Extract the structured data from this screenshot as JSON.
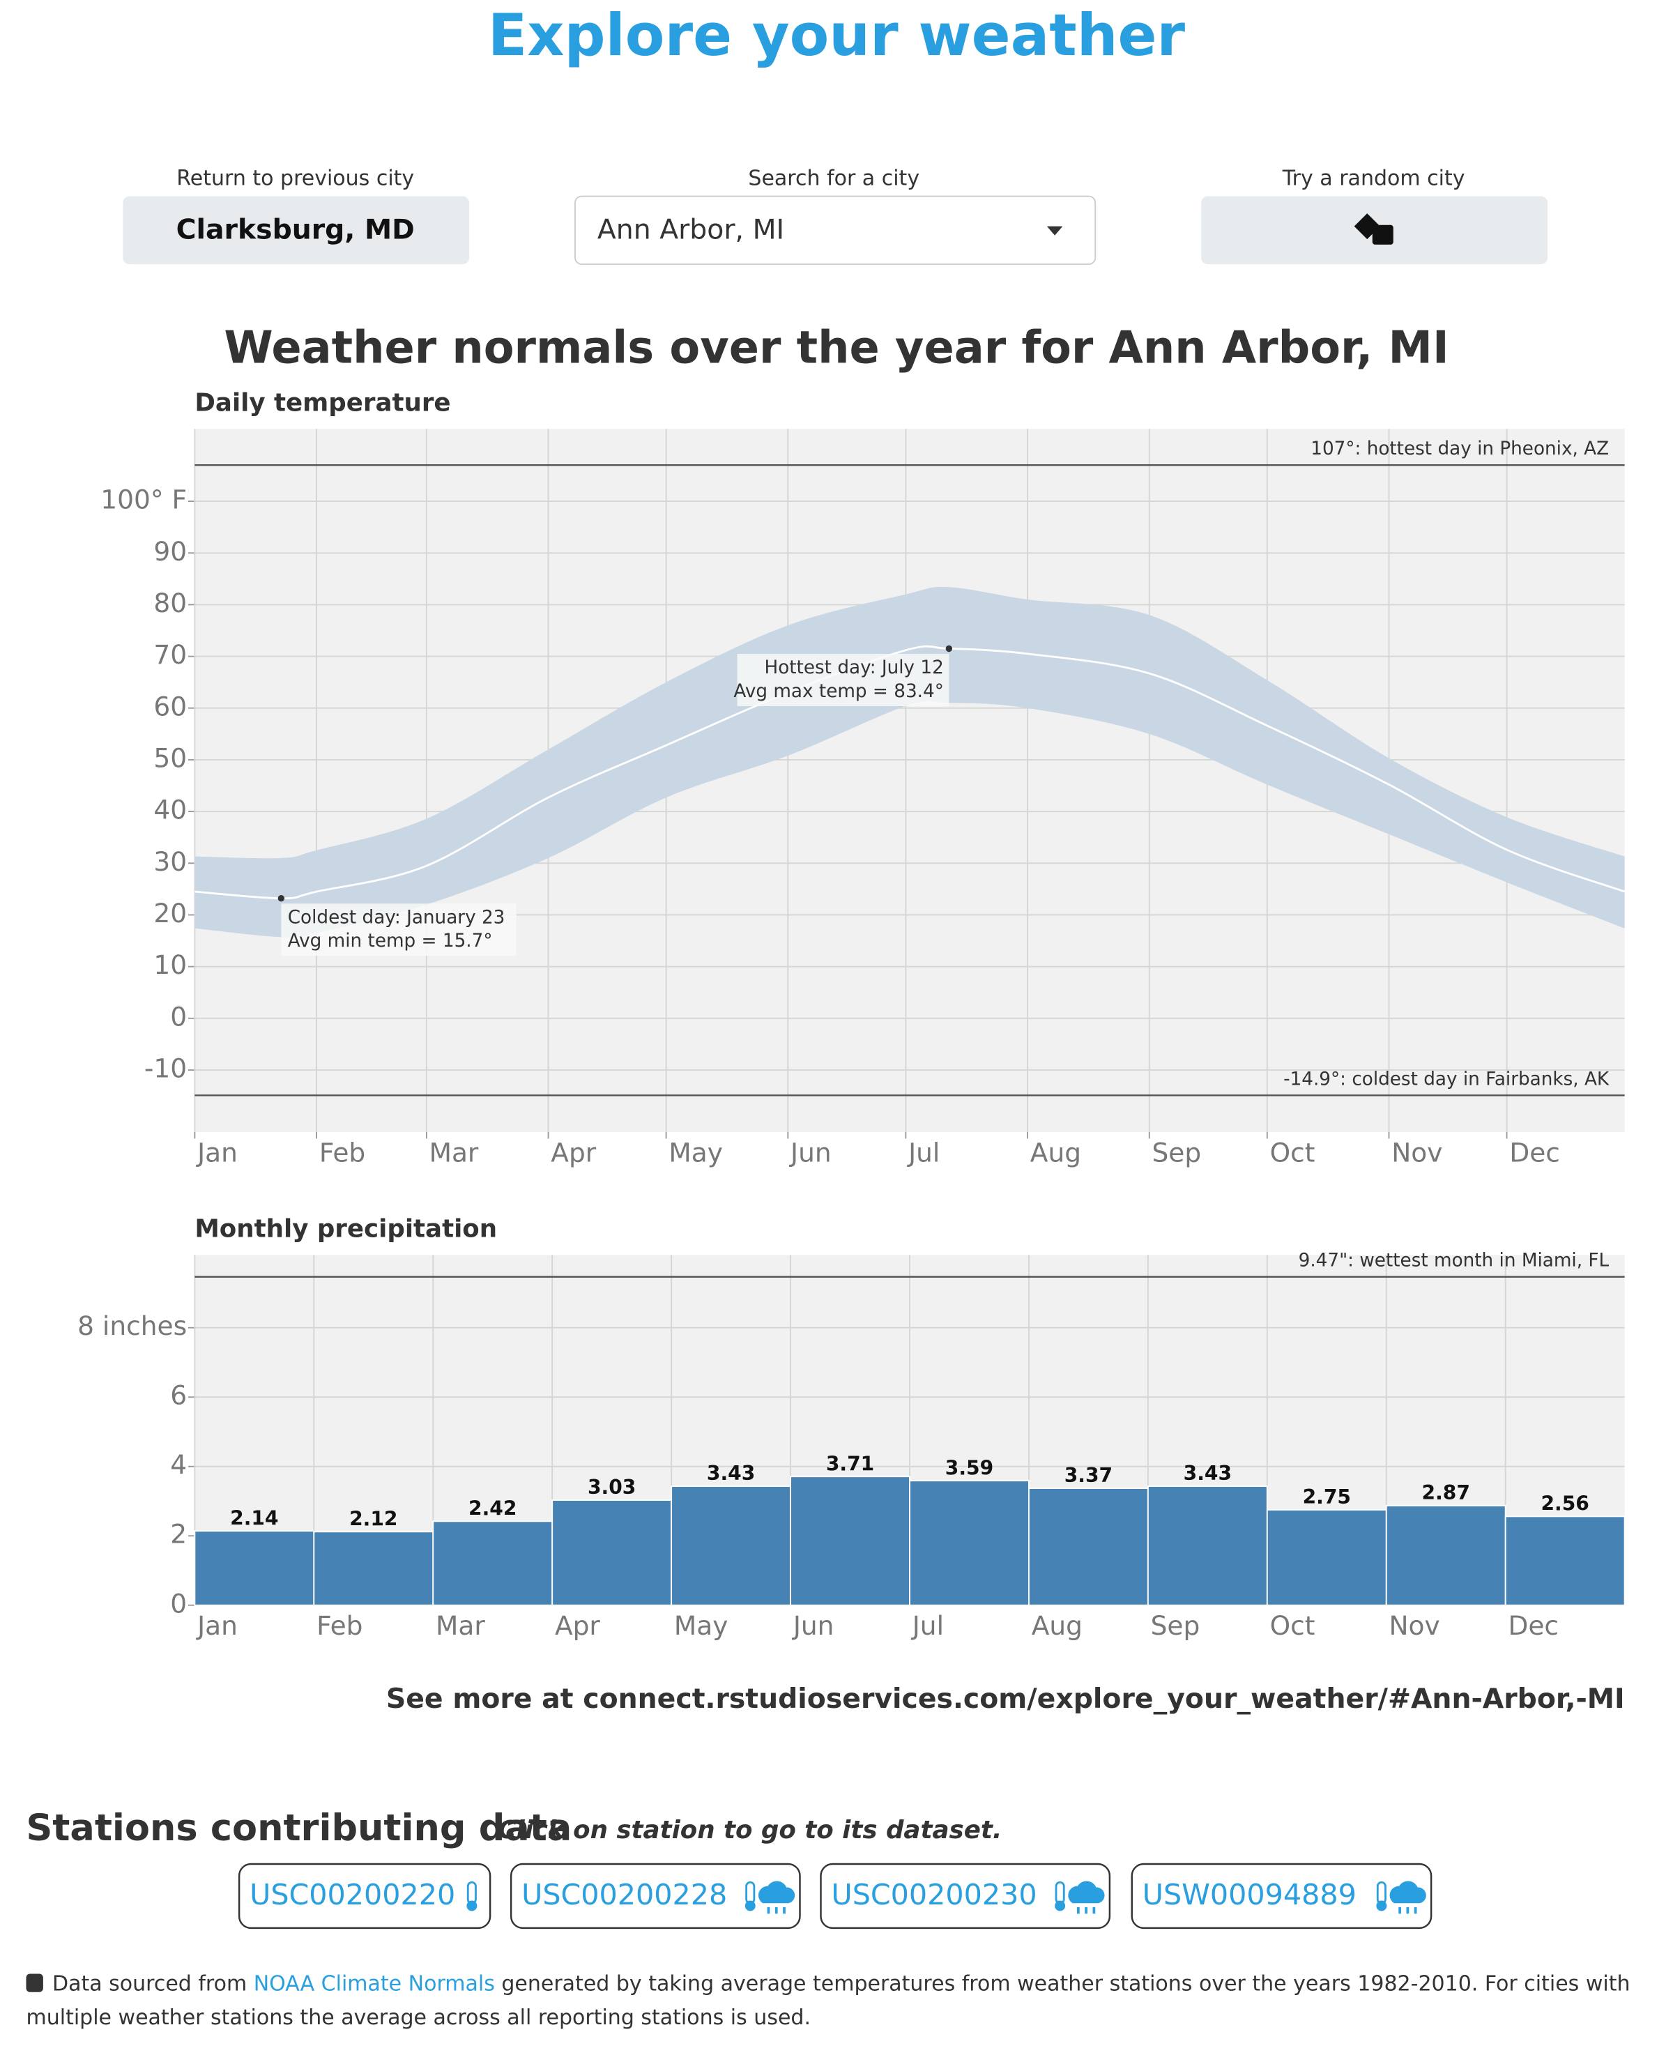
{
  "header": {
    "title": "Explore your weather"
  },
  "controls": {
    "previous_label": "Return to previous city",
    "previous_city": "Clarksburg, MD",
    "search_label": "Search for a city",
    "search_value": "Ann Arbor, MI",
    "random_label": "Try a random city"
  },
  "heading": "Weather normals over the year for Ann Arbor, MI",
  "chart_data": [
    {
      "type": "area-range",
      "title": "Daily temperature",
      "x": [
        1,
        23,
        32,
        60,
        91,
        121,
        152,
        182,
        193,
        213,
        244,
        274,
        305,
        335,
        365
      ],
      "xlim": [
        1,
        365
      ],
      "xticks": [
        {
          "value": 1,
          "label": "Jan"
        },
        {
          "value": 32,
          "label": "Feb"
        },
        {
          "value": 60,
          "label": "Mar"
        },
        {
          "value": 91,
          "label": "Apr"
        },
        {
          "value": 121,
          "label": "May"
        },
        {
          "value": 152,
          "label": "Jun"
        },
        {
          "value": 182,
          "label": "Jul"
        },
        {
          "value": 213,
          "label": "Aug"
        },
        {
          "value": 244,
          "label": "Sep"
        },
        {
          "value": 274,
          "label": "Oct"
        },
        {
          "value": 305,
          "label": "Nov"
        },
        {
          "value": 335,
          "label": "Dec"
        }
      ],
      "ylim": [
        -22,
        114
      ],
      "yticks": [
        -10,
        0,
        10,
        20,
        30,
        40,
        50,
        60,
        70,
        80,
        90,
        {
          "value": 100,
          "label": "100° F"
        }
      ],
      "grid": true,
      "band": {
        "color": "#c9d6e3",
        "high": [
          31.3,
          31,
          32.5,
          38.6,
          52,
          65,
          76,
          82,
          83.4,
          81,
          78,
          65.4,
          50.3,
          38.9,
          31.3
        ],
        "low": [
          17.4,
          15.7,
          16.5,
          22,
          31,
          42.7,
          50.8,
          60.4,
          61,
          60,
          55,
          45.2,
          35.6,
          26.3,
          17.4
        ]
      },
      "line": {
        "color": "#ffffff",
        "values": [
          24.5,
          23.2,
          24.5,
          29.5,
          42.7,
          52.8,
          63,
          71.2,
          71.5,
          70.5,
          66.7,
          56.6,
          45.2,
          32.6,
          24.5
        ]
      },
      "reference_lines": [
        {
          "value": 107,
          "label": "107°: hottest day in Pheonix, AZ"
        },
        {
          "value": -14.9,
          "label": "-14.9°: coldest day in Fairbanks, AK"
        }
      ],
      "annotations": [
        {
          "x": 23,
          "y": 23.2,
          "lines": [
            "Coldest day: January 23",
            "Avg min temp = 15.7°"
          ]
        },
        {
          "x": 193,
          "y": 71.5,
          "lines": [
            "Hottest day: July 12",
            "Avg max temp = 83.4°"
          ]
        }
      ]
    },
    {
      "type": "bar",
      "title": "Monthly precipitation",
      "categories": [
        "Jan",
        "Feb",
        "Mar",
        "Apr",
        "May",
        "Jun",
        "Jul",
        "Aug",
        "Sep",
        "Oct",
        "Nov",
        "Dec"
      ],
      "values": [
        2.14,
        2.12,
        2.42,
        3.03,
        3.43,
        3.71,
        3.59,
        3.37,
        3.43,
        2.75,
        2.87,
        2.56
      ],
      "color": "#4682b4",
      "ylim": [
        0,
        10.1
      ],
      "yticks": [
        0,
        2,
        4,
        6,
        {
          "value": 8,
          "label": "8 inches"
        }
      ],
      "grid": true,
      "reference_lines": [
        {
          "value": 9.47,
          "label": "9.47\": wettest month in Miami, FL"
        }
      ]
    }
  ],
  "see_more": "See more at connect.rstudioservices.com/explore_your_weather/#Ann-Arbor,-MI",
  "stations": {
    "title": "Stations contributing data",
    "hint": "Click on station to go to its dataset.",
    "items": [
      "USC00200220",
      "USC00200228",
      "USC00200230",
      "USW00094889"
    ]
  },
  "footer": {
    "before": "Data sourced from ",
    "link": "NOAA Climate Normals",
    "after": " generated by taking average temperatures from weather stations over the years 1982-2010. For cities with",
    "line2": "multiple weather stations the average across all reporting stations is used."
  }
}
